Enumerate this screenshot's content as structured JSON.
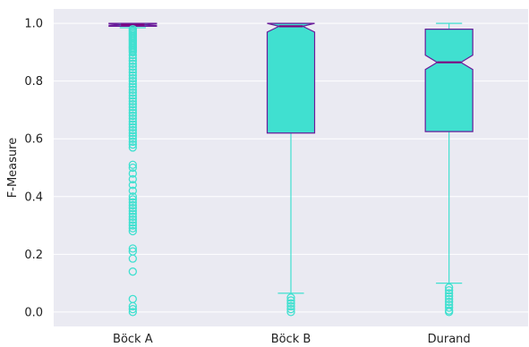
{
  "chart_data": {
    "type": "box",
    "title": "",
    "xlabel": "",
    "ylabel": "F-Measure",
    "ylim": [
      -0.05,
      1.05
    ],
    "yticks": [
      0.0,
      0.2,
      0.4,
      0.6,
      0.8,
      1.0
    ],
    "ytick_labels": [
      "0.0",
      "0.2",
      "0.4",
      "0.6",
      "0.8",
      "1.0"
    ],
    "categories": [
      "Böck A",
      "Böck B",
      "Durand"
    ],
    "grid": true,
    "notched": true,
    "colors": {
      "background": "#eaeaf2",
      "grid": "#ffffff",
      "box_fill": "#40e0d0",
      "box_edge": "#6a1b9a",
      "median": "#800080",
      "whisker": "#40e0d0",
      "flier": "#40e0d0"
    },
    "boxes": [
      {
        "name": "Böck A",
        "q1": 0.99,
        "median": 0.995,
        "q3": 1.0,
        "whisker_low": 0.985,
        "whisker_high": 1.0,
        "notch_low": 0.992,
        "notch_high": 0.998,
        "outliers": [
          0.98,
          0.975,
          0.97,
          0.965,
          0.96,
          0.955,
          0.95,
          0.945,
          0.94,
          0.935,
          0.93,
          0.925,
          0.92,
          0.915,
          0.91,
          0.905,
          0.9,
          0.89,
          0.88,
          0.87,
          0.86,
          0.85,
          0.84,
          0.83,
          0.82,
          0.81,
          0.8,
          0.79,
          0.78,
          0.77,
          0.76,
          0.75,
          0.74,
          0.73,
          0.72,
          0.71,
          0.7,
          0.69,
          0.68,
          0.67,
          0.66,
          0.65,
          0.64,
          0.63,
          0.62,
          0.61,
          0.6,
          0.59,
          0.58,
          0.57,
          0.51,
          0.5,
          0.48,
          0.46,
          0.44,
          0.42,
          0.4,
          0.39,
          0.38,
          0.37,
          0.36,
          0.35,
          0.34,
          0.33,
          0.32,
          0.31,
          0.3,
          0.29,
          0.28,
          0.22,
          0.21,
          0.185,
          0.14,
          0.045,
          0.02,
          0.01,
          0.0
        ]
      },
      {
        "name": "Böck B",
        "q1": 0.62,
        "median": 0.99,
        "q3": 1.0,
        "whisker_low": 0.065,
        "whisker_high": 1.0,
        "notch_low": 0.97,
        "notch_high": 1.0,
        "outliers": [
          0.05,
          0.04,
          0.03,
          0.02,
          0.01,
          0.0
        ]
      },
      {
        "name": "Durand",
        "q1": 0.625,
        "median": 0.865,
        "q3": 0.98,
        "whisker_low": 0.1,
        "whisker_high": 1.0,
        "notch_low": 0.84,
        "notch_high": 0.89,
        "outliers": [
          0.085,
          0.075,
          0.065,
          0.055,
          0.045,
          0.035,
          0.025,
          0.015,
          0.005,
          0.0
        ]
      }
    ]
  }
}
